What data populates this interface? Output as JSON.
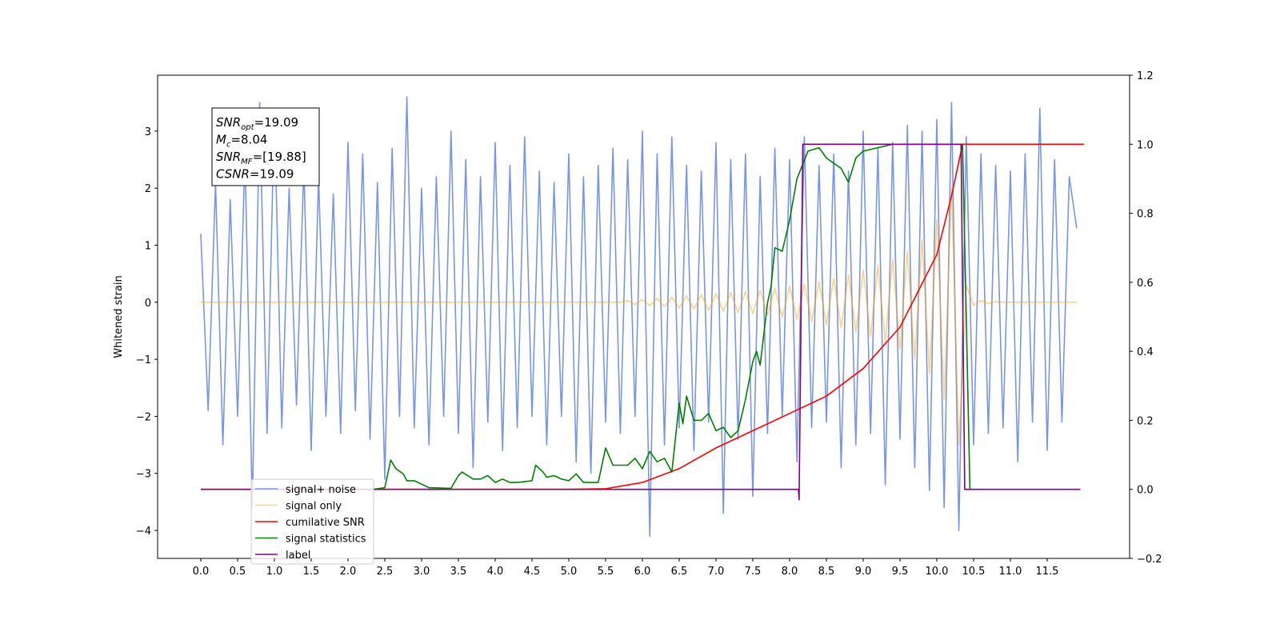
{
  "chart_data": {
    "type": "line",
    "y_label": "Whitened strain",
    "xlim": [
      -0.587,
      12.62
    ],
    "ylim": [
      -4.49,
      3.98
    ],
    "y2lim": [
      -0.2,
      1.2
    ],
    "xticks": [
      {
        "value": 0,
        "label": "0.0"
      },
      0.5,
      {
        "value": 1,
        "label": "1.0"
      },
      1.5,
      {
        "value": 2,
        "label": "2.0"
      },
      2.5,
      {
        "value": 3,
        "label": "3.0"
      },
      3.5,
      {
        "value": 4,
        "label": "4.0"
      },
      4.5,
      {
        "value": 5,
        "label": "5.0"
      },
      5.5,
      {
        "value": 6,
        "label": "6.0"
      },
      6.5,
      {
        "value": 7,
        "label": "7.0"
      },
      7.5,
      {
        "value": 8,
        "label": "8.0"
      },
      8.5,
      {
        "value": 9,
        "label": "9.0"
      },
      9.5,
      {
        "value": 10,
        "label": "10.0"
      },
      10.5,
      {
        "value": 11,
        "label": "11.0"
      },
      11.5
    ],
    "yticks": [
      {
        "value": -4,
        "label": "−4"
      },
      {
        "value": -3,
        "label": "−3"
      },
      {
        "value": -2,
        "label": "−2"
      },
      {
        "value": -1,
        "label": "−1"
      },
      0,
      1,
      2,
      3
    ],
    "y2ticks": [
      {
        "value": -0.2,
        "label": "−0.2"
      },
      {
        "value": 0,
        "label": "0.0"
      },
      0.2,
      0.4,
      0.6,
      0.8,
      {
        "value": 1,
        "label": "1.0"
      },
      1.2
    ],
    "legend": "lower left",
    "annotations": [
      {
        "base": "SNR",
        "sub": "opt",
        "rest": "=19.09"
      },
      {
        "base": "M",
        "sub": "c",
        "rest": "=8.04"
      },
      {
        "base": "SNR",
        "sub": "MF",
        "rest": "=[19.88]"
      },
      {
        "base": "CSNR",
        "rest": "=19.09"
      }
    ],
    "x": [
      0.0,
      0.1,
      0.2,
      0.3,
      0.4,
      0.5,
      0.6,
      0.7,
      0.8,
      0.9,
      1.0,
      1.1,
      1.2,
      1.3,
      1.4,
      1.5,
      1.6,
      1.7,
      1.8,
      1.9,
      2.0,
      2.1,
      2.2,
      2.3,
      2.4,
      2.5,
      2.6,
      2.7,
      2.8,
      2.9,
      3.0,
      3.1,
      3.2,
      3.3,
      3.4,
      3.5,
      3.6,
      3.7,
      3.8,
      3.9,
      4.0,
      4.1,
      4.2,
      4.3,
      4.4,
      4.5,
      4.6,
      4.7,
      4.8,
      4.9,
      5.0,
      5.1,
      5.2,
      5.3,
      5.4,
      5.5,
      5.6,
      5.7,
      5.8,
      5.9,
      6.0,
      6.1,
      6.2,
      6.3,
      6.4,
      6.5,
      6.6,
      6.7,
      6.8,
      6.9,
      7.0,
      7.1,
      7.2,
      7.3,
      7.4,
      7.5,
      7.6,
      7.7,
      7.8,
      7.9,
      8.0,
      8.1,
      8.2,
      8.3,
      8.4,
      8.5,
      8.6,
      8.7,
      8.8,
      8.9,
      9.0,
      9.1,
      9.2,
      9.3,
      9.4,
      9.5,
      9.6,
      9.7,
      9.8,
      9.9,
      10.0,
      10.1,
      10.2,
      10.3,
      10.4,
      10.5,
      10.6,
      10.7,
      10.8,
      10.9,
      11.0,
      11.1,
      11.2,
      11.3,
      11.4,
      11.5,
      11.6,
      11.7,
      11.8,
      11.9
    ],
    "series": [
      {
        "name": "signal+ noise",
        "color": "#7895e8",
        "opacity": 1,
        "values": [
          1.2,
          -1.9,
          2.1,
          -2.5,
          1.8,
          -2.0,
          2.6,
          -3.6,
          3.5,
          -2.3,
          3.4,
          -2.2,
          2.0,
          -1.8,
          2.4,
          -2.6,
          2.2,
          -2.0,
          1.9,
          -2.3,
          2.8,
          -1.9,
          2.6,
          -2.4,
          2.1,
          -3.1,
          2.7,
          -2.0,
          3.6,
          -2.2,
          2.0,
          -2.5,
          2.2,
          -2.0,
          3.0,
          -2.3,
          2.5,
          -2.9,
          2.2,
          -2.1,
          2.8,
          -2.6,
          2.4,
          -2.2,
          2.9,
          -2.0,
          2.3,
          -2.5,
          2.1,
          -2.0,
          2.6,
          -2.8,
          2.2,
          -3.0,
          2.4,
          -2.1,
          2.7,
          -2.3,
          2.5,
          -2.0,
          3.0,
          -4.1,
          2.6,
          -2.5,
          2.9,
          -2.2,
          2.4,
          -2.6,
          2.3,
          -2.1,
          2.8,
          -3.7,
          2.5,
          -2.4,
          2.6,
          -3.4,
          2.2,
          -2.3,
          2.7,
          -2.0,
          2.5,
          -2.8,
          2.9,
          -2.2,
          2.4,
          -2.1,
          2.6,
          -2.9,
          2.3,
          -2.5,
          3.0,
          -2.3,
          2.7,
          -3.2,
          2.8,
          -2.4,
          3.1,
          -2.9,
          3.0,
          -3.3,
          3.2,
          -3.6,
          3.5,
          -4.0,
          2.9,
          -2.5,
          2.6,
          -2.3,
          2.4,
          -2.2,
          2.3,
          -2.8,
          2.6,
          -2.1,
          3.4,
          -2.6,
          2.5,
          -2.1,
          2.2,
          1.3
        ]
      },
      {
        "name": "signal only",
        "color": "#ffa500",
        "opacity": 0.5,
        "values": [
          0,
          0,
          0,
          0,
          0,
          0,
          0,
          0,
          0,
          0,
          0,
          0,
          0,
          0,
          0,
          0,
          0,
          0,
          0,
          0,
          0,
          0,
          0,
          0,
          0,
          0,
          0,
          0,
          0,
          0,
          0,
          0,
          0,
          0,
          0,
          0,
          0,
          0,
          0,
          0,
          0,
          0,
          0,
          0,
          0,
          0,
          0,
          0,
          0,
          0,
          0,
          0,
          0,
          0,
          0,
          0,
          0,
          0,
          0.03,
          -0.04,
          0.05,
          -0.06,
          0.07,
          -0.08,
          0.09,
          -0.1,
          0.11,
          -0.12,
          0.13,
          -0.14,
          0.15,
          -0.16,
          0.17,
          -0.18,
          0.19,
          -0.2,
          0.21,
          -0.22,
          0.24,
          -0.26,
          0.28,
          -0.3,
          0.32,
          -0.34,
          0.36,
          -0.39,
          0.42,
          -0.45,
          0.48,
          -0.52,
          0.56,
          -0.6,
          0.65,
          -0.7,
          0.76,
          -0.83,
          0.9,
          -1.0,
          1.1,
          -1.25,
          1.45,
          -1.7,
          2.0,
          -2.5,
          0.3,
          -0.05,
          0.03,
          -0.02,
          0.01,
          0,
          0,
          0,
          0,
          0,
          0,
          0,
          0,
          0,
          0,
          0
        ]
      },
      {
        "name": "cumilative SNR",
        "color": "#ff0000",
        "axis": "y2",
        "x": [
          0,
          5.0,
          5.5,
          6.0,
          6.5,
          7.0,
          7.5,
          8.0,
          8.5,
          9.0,
          9.5,
          10.0,
          10.2,
          10.35,
          10.4,
          12.0
        ],
        "values": [
          0,
          0,
          0.002,
          0.02,
          0.06,
          0.12,
          0.17,
          0.22,
          0.27,
          0.35,
          0.47,
          0.68,
          0.85,
          1.0,
          1.0,
          1.0
        ]
      },
      {
        "name": "signal statistics",
        "color": "#008000",
        "axis": "y2",
        "x": [
          2.35,
          2.5,
          2.58,
          2.65,
          2.75,
          2.8,
          2.9,
          3.0,
          3.1,
          3.4,
          3.5,
          3.55,
          3.7,
          3.8,
          3.9,
          4.0,
          4.1,
          4.2,
          4.3,
          4.5,
          4.55,
          4.65,
          4.7,
          4.8,
          4.9,
          5.0,
          5.1,
          5.2,
          5.4,
          5.5,
          5.6,
          5.8,
          5.9,
          6.0,
          6.1,
          6.2,
          6.3,
          6.4,
          6.45,
          6.5,
          6.55,
          6.6,
          6.7,
          6.8,
          6.9,
          7.0,
          7.1,
          7.2,
          7.3,
          7.4,
          7.5,
          7.55,
          7.6,
          7.7,
          7.75,
          7.8,
          7.9,
          8.0,
          8.1,
          8.25,
          8.4,
          8.5,
          8.7,
          8.8,
          8.9,
          9.0,
          9.2,
          9.4,
          10.35,
          10.45,
          10.5
        ],
        "values": [
          0,
          0.005,
          0.085,
          0.06,
          0.045,
          0.025,
          0.025,
          0.015,
          0.005,
          0.003,
          0.04,
          0.05,
          0.03,
          0.03,
          0.04,
          0.02,
          0.03,
          0.02,
          0.02,
          0.025,
          0.07,
          0.05,
          0.035,
          0.04,
          0.03,
          0.025,
          0.045,
          0.02,
          0.02,
          0.12,
          0.07,
          0.07,
          0.09,
          0.06,
          0.11,
          0.08,
          0.09,
          0.05,
          0.15,
          0.25,
          0.19,
          0.27,
          0.2,
          0.2,
          0.22,
          0.17,
          0.18,
          0.15,
          0.17,
          0.26,
          0.37,
          0.4,
          0.36,
          0.54,
          0.59,
          0.7,
          0.69,
          0.78,
          0.9,
          0.98,
          0.99,
          0.96,
          0.93,
          0.89,
          0.96,
          0.98,
          0.99,
          1.0,
          1.0,
          0,
          0
        ]
      },
      {
        "name": "label",
        "color": "#800080",
        "axis": "y2",
        "x": [
          0,
          8.12,
          8.13,
          8.18,
          10.33,
          10.38,
          11.95
        ],
        "values": [
          0,
          0,
          -0.03,
          1,
          1,
          0,
          0
        ]
      }
    ]
  }
}
